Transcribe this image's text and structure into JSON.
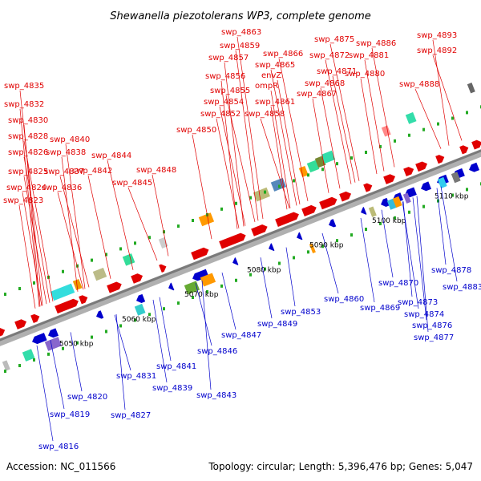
{
  "title": "Shewanella piezotolerans WP3, complete genome",
  "footer": {
    "accession": "Accession: NC_011566",
    "summary": "Topology: circular; Length: 5,396,476 bp; Genes: 5,047"
  },
  "colors": {
    "forward_gene": "#e00000",
    "reverse_gene": "#0000cc",
    "backbone": "#8a8a8a",
    "marker": "#22aa22"
  },
  "ticks": [
    {
      "label": "5050 kbp",
      "pos_bp": 5050000
    },
    {
      "label": "5060 kbp",
      "pos_bp": 5060000
    },
    {
      "label": "5070 kbp",
      "pos_bp": 5070000
    },
    {
      "label": "5080 kbp",
      "pos_bp": 5080000
    },
    {
      "label": "5090 kbp",
      "pos_bp": 5090000
    },
    {
      "label": "5100 kbp",
      "pos_bp": 5100000
    },
    {
      "label": "5110 kbp",
      "pos_bp": 5110000
    }
  ],
  "forward_labels": [
    "swp_4823",
    "swp_4824",
    "swp_4825",
    "swp_4826",
    "swp_4828",
    "swp_4830",
    "swp_4832",
    "swp_4835",
    "swp_4836",
    "swp_4837",
    "swp_4838",
    "swp_4840",
    "swp_4842",
    "swp_4844",
    "swp_4845",
    "swp_4848",
    "swp_4850",
    "swp_4852",
    "swp_4854",
    "swp_4855",
    "swp_4856",
    "swp_4857",
    "swp_4859",
    "swp_4863",
    "swp_4858",
    "swp_4861",
    "ompR",
    "envZ",
    "swp_4865",
    "swp_4866",
    "swp_4867",
    "swp_4868",
    "swp_4871",
    "swp_4872",
    "swp_4875",
    "swp_4880",
    "swp_4881",
    "swp_4886",
    "swp_4888",
    "swp_4892",
    "swp_4893"
  ],
  "reverse_labels": [
    "swp_4816",
    "swp_4819",
    "swp_4820",
    "swp_4827",
    "swp_4831",
    "swp_4839",
    "swp_4841",
    "swp_4843",
    "swp_4846",
    "swp_4847",
    "swp_4849",
    "swp_4853",
    "swp_4860",
    "swp_4869",
    "swp_4870",
    "swp_4873",
    "swp_4874",
    "swp_4876",
    "swp_4877",
    "swp_4878",
    "swp_4883"
  ]
}
